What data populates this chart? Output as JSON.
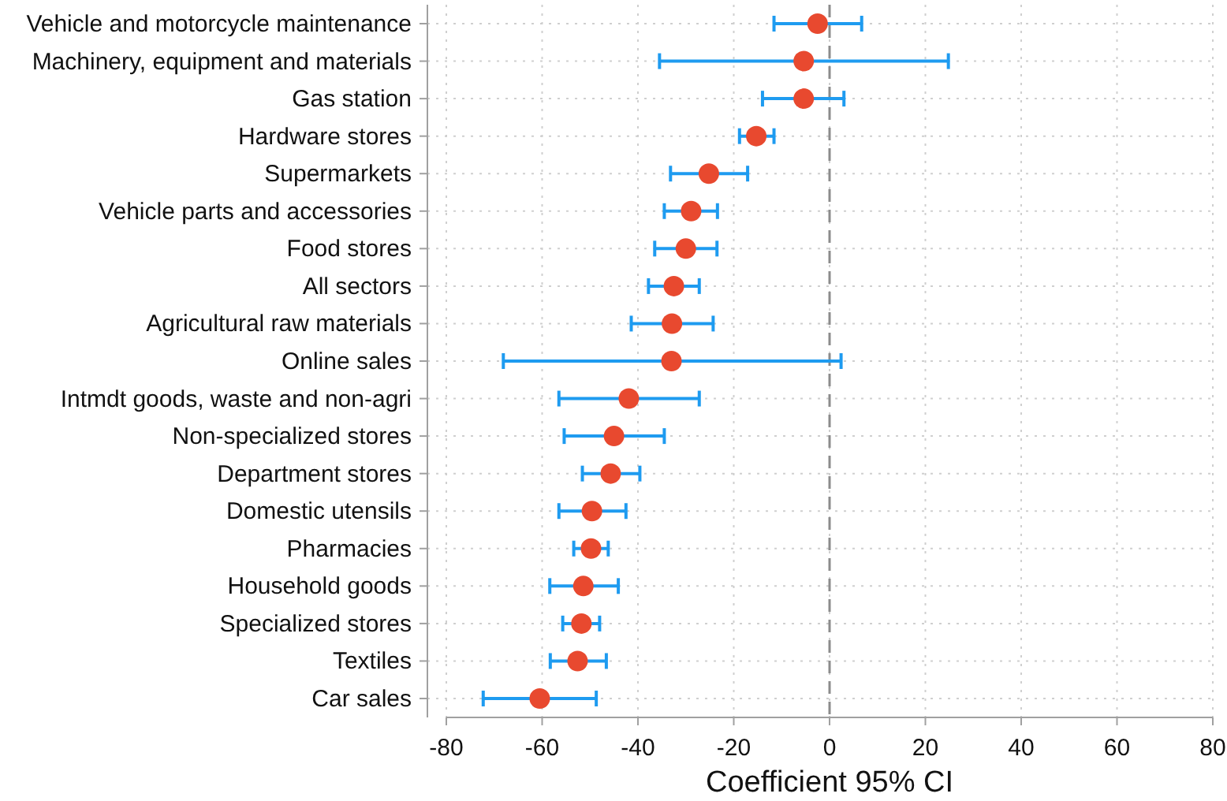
{
  "chart_data": {
    "type": "scatter",
    "orientation": "horizontal",
    "xlabel": "Coefficient 95% CI",
    "categories": [
      "Vehicle and motorcycle maintenance",
      "Machinery, equipment and materials",
      "Gas station",
      "Hardware stores",
      "Supermarkets",
      "Vehicle parts and accessories",
      "Food stores",
      "All sectors",
      "Agricultural raw materials",
      "Online sales",
      "Intmdt goods, waste and non-agri",
      "Non-specialized stores",
      "Department stores",
      "Domestic utensils",
      "Pharmacies",
      "Household goods",
      "Specialized stores",
      "Textiles",
      "Car sales"
    ],
    "series": [
      {
        "color": "#e8492f",
        "values": [
          -2.5,
          -5.4,
          -5.4,
          -15.3,
          -25.2,
          -28.9,
          -30.0,
          -32.5,
          -32.9,
          -33.0,
          -41.9,
          -45.0,
          -45.7,
          -49.6,
          -49.8,
          -51.4,
          -51.8,
          -52.6,
          -60.5
        ],
        "errors": [
          [
            -11.6,
            6.7
          ],
          [
            -35.5,
            24.8
          ],
          [
            -14.0,
            3.0
          ],
          [
            -18.8,
            -11.6
          ],
          [
            -33.2,
            -17.1
          ],
          [
            -34.5,
            -23.4
          ],
          [
            -36.5,
            -23.5
          ],
          [
            -37.8,
            -27.2
          ],
          [
            -41.4,
            -24.3
          ],
          [
            -68.1,
            2.4
          ],
          [
            -56.5,
            -27.2
          ],
          [
            -55.4,
            -34.5
          ],
          [
            -51.6,
            -39.6
          ],
          [
            -56.5,
            -42.5
          ],
          [
            -53.4,
            -46.2
          ],
          [
            -58.4,
            -44.1
          ],
          [
            -55.7,
            -48.0
          ],
          [
            -58.3,
            -46.6
          ],
          [
            -72.3,
            -48.7
          ]
        ]
      }
    ],
    "xlim": [
      -80,
      80
    ],
    "xticks": [
      -80,
      -60,
      -40,
      -20,
      0,
      20,
      40,
      60,
      80
    ],
    "ref_lines": [
      {
        "axis": "x",
        "value": 0,
        "color": "#8c8c8c",
        "line_style": "dashed"
      }
    ],
    "grid": true,
    "marker": "circle"
  }
}
